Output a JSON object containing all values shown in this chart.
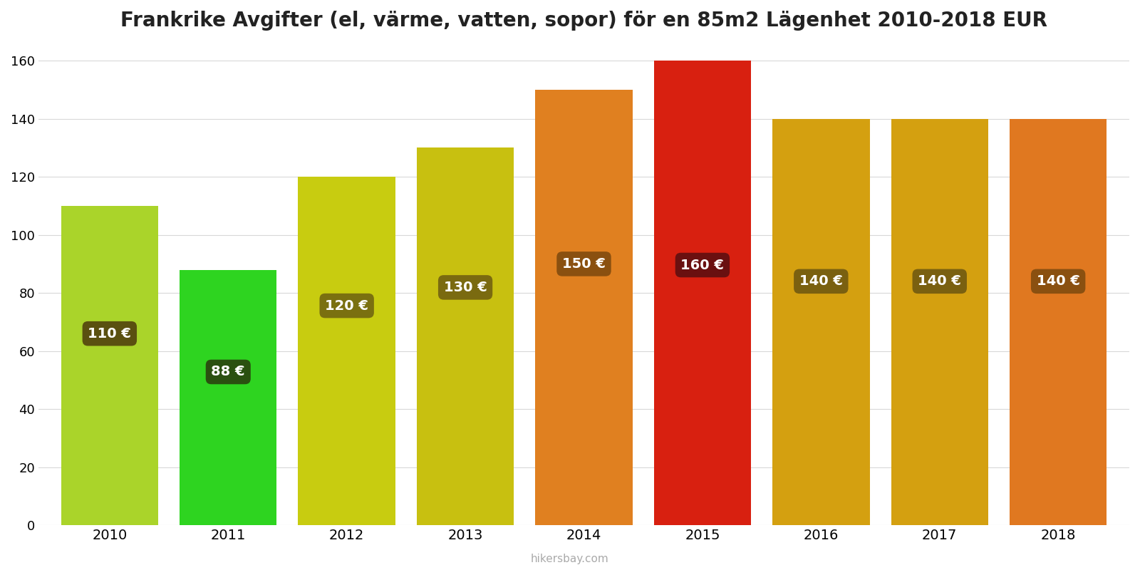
{
  "years": [
    2010,
    2011,
    2012,
    2013,
    2014,
    2015,
    2016,
    2017,
    2018
  ],
  "values": [
    110,
    88,
    120,
    130,
    150,
    160,
    140,
    140,
    140
  ],
  "bar_colors": [
    "#aad42a",
    "#2ed420",
    "#c8cc10",
    "#c8c010",
    "#e08020",
    "#d82010",
    "#d4a010",
    "#d4a010",
    "#e07820"
  ],
  "label_texts": [
    "110 €",
    "88 €",
    "120 €",
    "130 €",
    "150 €",
    "160 €",
    "140 €",
    "140 €",
    "140 €"
  ],
  "label_bg_colors": [
    "#5a5010",
    "#2a5010",
    "#7a7010",
    "#7a6a10",
    "#8a5010",
    "#6a1010",
    "#7a6010",
    "#7a6010",
    "#8a5010"
  ],
  "label_text_color": "#ffffff",
  "title": "Frankrike Avgifter (el, värme, vatten, sopor) för en 85m2 Lägenhet 2010-2018 EUR",
  "ylim": [
    0,
    165
  ],
  "yticks": [
    0,
    20,
    40,
    60,
    80,
    100,
    120,
    140,
    160
  ],
  "grid_color": "#d8d8d8",
  "background_color": "#ffffff",
  "title_fontsize": 20,
  "watermark": "hikersbay.com",
  "label_y_fractions": [
    0.6,
    0.6,
    0.63,
    0.63,
    0.6,
    0.56,
    0.6,
    0.6,
    0.6
  ]
}
